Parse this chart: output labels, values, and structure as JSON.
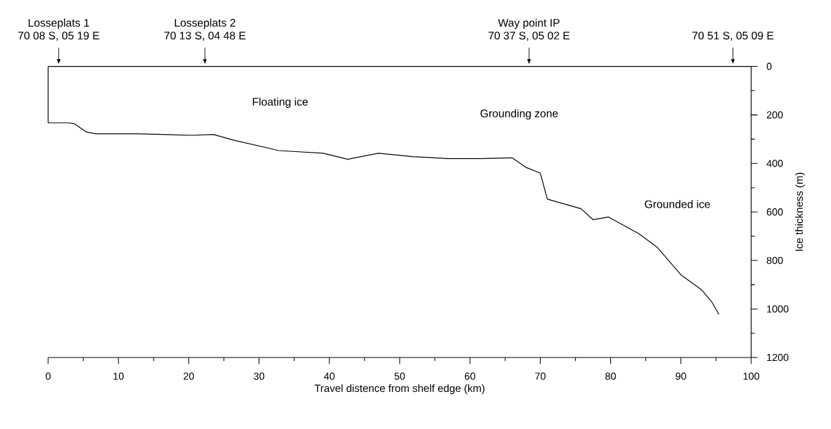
{
  "chart_data": {
    "type": "line",
    "xlabel": "Travel distence from shelf edge (km)",
    "ylabel": "Ice thickness (m)",
    "xlim": [
      0,
      100
    ],
    "xticks": [
      0,
      10,
      20,
      30,
      40,
      50,
      60,
      70,
      80,
      90,
      100
    ],
    "ylim": [
      1200,
      0
    ],
    "yticks": [
      0,
      200,
      400,
      600,
      800,
      1000,
      1200
    ],
    "grid": false,
    "series": [
      {
        "color": "#000000",
        "x": [
          0,
          0,
          2.9,
          3.7,
          5.4,
          6.8,
          12.7,
          20.5,
          23.5,
          26.4,
          32.8,
          39.1,
          42.6,
          47,
          51.9,
          56.8,
          61.6,
          66,
          68,
          70,
          71,
          73.4,
          75.8,
          77.5,
          79.7,
          84,
          86.6,
          90,
          92.9,
          94.4,
          95.4
        ],
        "values": [
          0,
          233,
          233,
          236,
          270,
          278,
          278,
          284,
          281,
          304,
          347,
          358,
          383,
          358,
          372,
          380,
          380,
          377,
          417,
          440,
          547,
          567,
          587,
          632,
          621,
          689,
          745,
          859,
          920,
          971,
          1022
        ]
      }
    ],
    "ref_lines": [
      {
        "axis": "y",
        "value": 0,
        "color": "#000000"
      }
    ],
    "annotations": [
      "Losseplats 1",
      {
        "text": "70 08 S, 05 19 E",
        "x": 1.5,
        "y": 0
      },
      "Losseplats 2",
      {
        "text": "70 13 S, 04 48 E",
        "x": 22.3,
        "y": 0
      },
      "Way point IP",
      {
        "text": "70 37 S, 05 02 E",
        "x": 68.4,
        "y": 0
      },
      {
        "text": "70 51 S, 05 09 E",
        "x": 97.4,
        "y": 0
      },
      "Floating ice",
      "Grounding zone",
      "Grounded ice"
    ]
  }
}
